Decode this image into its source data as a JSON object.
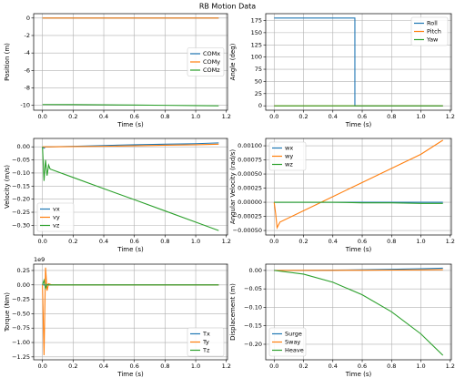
{
  "title": "RB Motion Data",
  "chart_data": [
    {
      "type": "line",
      "xlabel": "Time (s)",
      "ylabel": "Position (m)",
      "x": [
        0,
        0.2,
        0.4,
        0.6,
        0.8,
        1.0,
        1.15
      ],
      "series": [
        {
          "name": "COMx",
          "color": "#1f77b4",
          "values": [
            0,
            0,
            0,
            0,
            0,
            0,
            0
          ]
        },
        {
          "name": "COMy",
          "color": "#ff7f0e",
          "values": [
            0,
            0,
            0,
            0,
            0,
            0,
            0
          ]
        },
        {
          "name": "COMz",
          "color": "#2ca02c",
          "values": [
            -9.9,
            -9.91,
            -9.93,
            -9.96,
            -9.99,
            -10.02,
            -10.05
          ]
        }
      ],
      "xlim": [
        -0.0575,
        1.2075
      ],
      "xticks": [
        {
          "value": 0,
          "label": "0.0"
        },
        {
          "value": 0.2,
          "label": "0.2"
        },
        {
          "value": 0.4,
          "label": "0.4"
        },
        {
          "value": 0.6,
          "label": "0.6"
        },
        {
          "value": 0.8,
          "label": "0.8"
        },
        {
          "value": 1.0,
          "label": "1.0"
        },
        {
          "value": 1.2,
          "label": "1.2"
        }
      ],
      "ylim": [
        -10.55,
        0.5
      ],
      "yticks": [
        -10,
        -8,
        -6,
        -4,
        -2,
        0
      ],
      "grid": true,
      "legend": "center right"
    },
    {
      "type": "line",
      "xlabel": "Time (s)",
      "ylabel": "Angle (deg)",
      "x": [
        0,
        0.55,
        0.55,
        1.15
      ],
      "series": [
        {
          "name": "Roll",
          "color": "#1f77b4",
          "values": [
            180,
            180,
            0,
            0
          ]
        },
        {
          "name": "Pitch",
          "color": "#ff7f0e",
          "values": [
            0,
            0,
            0,
            0
          ]
        },
        {
          "name": "Yaw",
          "color": "#2ca02c",
          "values": [
            0,
            0,
            0,
            0
          ]
        }
      ],
      "xlim": [
        -0.0575,
        1.2075
      ],
      "xticks": [
        {
          "value": 0,
          "label": "0.0"
        },
        {
          "value": 0.2,
          "label": "0.2"
        },
        {
          "value": 0.4,
          "label": "0.4"
        },
        {
          "value": 0.6,
          "label": "0.6"
        },
        {
          "value": 0.8,
          "label": "0.8"
        },
        {
          "value": 1.0,
          "label": "1.0"
        },
        {
          "value": 1.2,
          "label": "1.2"
        }
      ],
      "ylim": [
        -9,
        189
      ],
      "yticks": [
        0,
        25,
        50,
        75,
        100,
        125,
        150,
        175
      ],
      "grid": true,
      "legend": "upper right"
    },
    {
      "type": "line",
      "xlabel": "Time (s)",
      "ylabel": "Velocity (m/s)",
      "x": [
        0,
        0.01,
        0.02,
        0.03,
        0.04,
        0.05,
        0.2,
        0.4,
        0.6,
        0.8,
        1.0,
        1.15
      ],
      "series": [
        {
          "name": "vx",
          "color": "#1f77b4",
          "values": [
            0,
            -0.005,
            0,
            0,
            0,
            0,
            0.002,
            0.005,
            0.008,
            0.01,
            0.012,
            0.015
          ]
        },
        {
          "name": "vy",
          "color": "#ff7f0e",
          "values": [
            0,
            0,
            0,
            0,
            0,
            0,
            0.001,
            0.002,
            0.004,
            0.006,
            0.008,
            0.01
          ]
        },
        {
          "name": "vz",
          "color": "#2ca02c",
          "values": [
            0,
            -0.13,
            -0.05,
            -0.11,
            -0.07,
            -0.085,
            -0.117,
            -0.16,
            -0.202,
            -0.245,
            -0.288,
            -0.32
          ]
        }
      ],
      "xlim": [
        -0.0575,
        1.2075
      ],
      "xticks": [
        {
          "value": 0,
          "label": "0.0"
        },
        {
          "value": 0.2,
          "label": "0.2"
        },
        {
          "value": 0.4,
          "label": "0.4"
        },
        {
          "value": 0.6,
          "label": "0.6"
        },
        {
          "value": 0.8,
          "label": "0.8"
        },
        {
          "value": 1.0,
          "label": "1.0"
        },
        {
          "value": 1.2,
          "label": "1.2"
        }
      ],
      "ylim": [
        -0.337,
        0.032
      ],
      "yticks": [
        {
          "value": -0.3,
          "label": "−0.30"
        },
        {
          "value": -0.25,
          "label": "−0.25"
        },
        {
          "value": -0.2,
          "label": "−0.20"
        },
        {
          "value": -0.15,
          "label": "−0.15"
        },
        {
          "value": -0.1,
          "label": "−0.10"
        },
        {
          "value": -0.05,
          "label": "−0.05"
        },
        {
          "value": 0,
          "label": "0.00"
        }
      ],
      "grid": true,
      "legend": "lower left"
    },
    {
      "type": "line",
      "xlabel": "Time (s)",
      "ylabel": "Angular Velocity (rad/s)",
      "x": [
        0,
        0.01,
        0.02,
        0.04,
        0.2,
        0.4,
        0.6,
        0.8,
        1.0,
        1.15
      ],
      "series": [
        {
          "name": "wx",
          "color": "#1f77b4",
          "values": [
            0,
            0,
            0,
            0,
            0,
            0,
            0,
            0,
            0,
            0
          ]
        },
        {
          "name": "wy",
          "color": "#ff7f0e",
          "values": [
            0,
            -0.0002,
            -0.00045,
            -0.00035,
            -0.00015,
            0.0001,
            0.00035,
            0.0006,
            0.00085,
            0.0011
          ]
        },
        {
          "name": "wz",
          "color": "#2ca02c",
          "values": [
            0,
            0,
            0,
            0,
            0,
            0,
            -1e-05,
            -1e-05,
            -2e-05,
            -2e-05
          ]
        }
      ],
      "xlim": [
        -0.0575,
        1.2075
      ],
      "xticks": [
        {
          "value": 0,
          "label": "0.0"
        },
        {
          "value": 0.2,
          "label": "0.2"
        },
        {
          "value": 0.4,
          "label": "0.4"
        },
        {
          "value": 0.6,
          "label": "0.6"
        },
        {
          "value": 0.8,
          "label": "0.8"
        },
        {
          "value": 1.0,
          "label": "1.0"
        },
        {
          "value": 1.2,
          "label": "1.2"
        }
      ],
      "ylim": [
        -0.00058,
        0.00113
      ],
      "yticks": [
        {
          "value": -0.0005,
          "label": "−0.00050"
        },
        {
          "value": -0.00025,
          "label": "−0.00025"
        },
        {
          "value": 0,
          "label": "0.00000"
        },
        {
          "value": 0.00025,
          "label": "0.00025"
        },
        {
          "value": 0.0005,
          "label": "0.00050"
        },
        {
          "value": 0.00075,
          "label": "0.00075"
        },
        {
          "value": 0.001,
          "label": "0.00100"
        }
      ],
      "grid": true,
      "legend": "upper left"
    },
    {
      "type": "line",
      "xlabel": "Time (s)",
      "ylabel": "Torque (Nm)",
      "y_offset_label": "1e9",
      "x": [
        0,
        0.01,
        0.02,
        0.03,
        0.04,
        0.06,
        0.2,
        0.6,
        1.15
      ],
      "series": [
        {
          "name": "Tx",
          "color": "#1f77b4",
          "values": [
            0,
            0,
            0,
            0,
            0,
            0,
            0,
            0,
            0
          ]
        },
        {
          "name": "Ty",
          "color": "#ff7f0e",
          "values": [
            0,
            -1220000000,
            300000000,
            -100000000,
            20000000,
            0,
            0,
            0,
            0
          ]
        },
        {
          "name": "Tz",
          "color": "#2ca02c",
          "values": [
            0,
            80000000,
            -60000000,
            10000000,
            0,
            0,
            0,
            0,
            0
          ]
        }
      ],
      "xlim": [
        -0.0575,
        1.2075
      ],
      "xticks": [
        {
          "value": 0,
          "label": "0.0"
        },
        {
          "value": 0.2,
          "label": "0.2"
        },
        {
          "value": 0.4,
          "label": "0.4"
        },
        {
          "value": 0.6,
          "label": "0.6"
        },
        {
          "value": 0.8,
          "label": "0.8"
        },
        {
          "value": 1.0,
          "label": "1.0"
        },
        {
          "value": 1.2,
          "label": "1.2"
        }
      ],
      "ylim": [
        -1300000000,
        360000000
      ],
      "yticks": [
        {
          "value": -1250000000,
          "label": "−1.25"
        },
        {
          "value": -1000000000,
          "label": "−1.00"
        },
        {
          "value": -750000000,
          "label": "−0.75"
        },
        {
          "value": -500000000,
          "label": "−0.50"
        },
        {
          "value": -250000000,
          "label": "−0.25"
        },
        {
          "value": 0,
          "label": "0.00"
        },
        {
          "value": 250000000,
          "label": "0.25"
        }
      ],
      "grid": true,
      "legend": "lower right"
    },
    {
      "type": "line",
      "xlabel": "Time (s)",
      "ylabel": "Displacement (m)",
      "x": [
        0,
        0.2,
        0.4,
        0.6,
        0.8,
        1.0,
        1.15
      ],
      "series": [
        {
          "name": "Surge",
          "color": "#1f77b4",
          "values": [
            0,
            0.0002,
            0.0008,
            0.0017,
            0.003,
            0.0045,
            0.006
          ]
        },
        {
          "name": "Sway",
          "color": "#ff7f0e",
          "values": [
            0,
            0.0001,
            0.0003,
            0.0006,
            0.001,
            0.0015,
            0.002
          ]
        },
        {
          "name": "Heave",
          "color": "#2ca02c",
          "values": [
            0,
            -0.01,
            -0.032,
            -0.066,
            -0.112,
            -0.172,
            -0.23
          ]
        }
      ],
      "xlim": [
        -0.0575,
        1.2075
      ],
      "xticks": [
        {
          "value": 0,
          "label": "0.0"
        },
        {
          "value": 0.2,
          "label": "0.2"
        },
        {
          "value": 0.4,
          "label": "0.4"
        },
        {
          "value": 0.6,
          "label": "0.6"
        },
        {
          "value": 0.8,
          "label": "0.8"
        },
        {
          "value": 1.0,
          "label": "1.0"
        },
        {
          "value": 1.2,
          "label": "1.2"
        }
      ],
      "ylim": [
        -0.242,
        0.017
      ],
      "yticks": [
        {
          "value": -0.2,
          "label": "−0.20"
        },
        {
          "value": -0.15,
          "label": "−0.15"
        },
        {
          "value": -0.1,
          "label": "−0.10"
        },
        {
          "value": -0.05,
          "label": "−0.05"
        },
        {
          "value": 0,
          "label": "0.00"
        }
      ],
      "grid": true,
      "legend": "lower left"
    }
  ]
}
